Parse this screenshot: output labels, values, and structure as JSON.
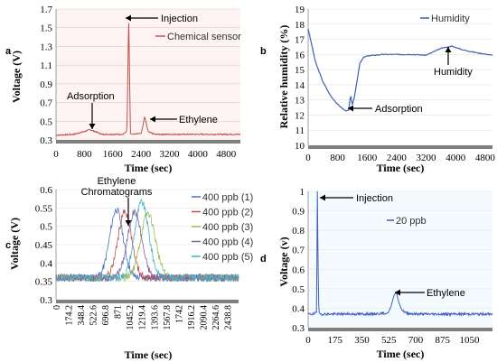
{
  "colors": {
    "sensor": "#c0504d",
    "humidity": "#4060b0",
    "chrom": [
      "#4472c4",
      "#c0504d",
      "#9bbb59",
      "#8064a2",
      "#4bacc6"
    ],
    "ppb20": "#3f5fbf",
    "axis_bar": "#7f7f7f"
  },
  "chart_data": [
    {
      "panel": "a",
      "type": "line",
      "ylabel": "Voltage (V)",
      "xlabel": "Time (sec)",
      "xlim": [
        0,
        5200
      ],
      "ylim": [
        0.3,
        1.7
      ],
      "xticks": [
        "0",
        "800",
        "1600",
        "2400",
        "3200",
        "4000",
        "4800"
      ],
      "yticks": [
        "0.3",
        "0.5",
        "0.7",
        "0.9",
        "1.1",
        "1.3",
        "1.5",
        "1.7"
      ],
      "series": [
        {
          "name": "Chemical sensor",
          "x": [
            0,
            500,
            800,
            950,
            1100,
            1300,
            1600,
            1900,
            2000,
            2050,
            2100,
            2150,
            2200,
            2400,
            2450,
            2500,
            2550,
            2600,
            2700,
            2800,
            3200,
            3600,
            4000,
            4400,
            4800,
            5200
          ],
          "y": [
            0.35,
            0.36,
            0.39,
            0.41,
            0.39,
            0.36,
            0.36,
            0.36,
            0.4,
            1.6,
            0.37,
            0.36,
            0.36,
            0.37,
            0.45,
            0.55,
            0.47,
            0.39,
            0.37,
            0.36,
            0.36,
            0.36,
            0.36,
            0.36,
            0.36,
            0.36
          ]
        }
      ],
      "annotations": [
        "Injection",
        "Adsorption",
        "Ethylene"
      ]
    },
    {
      "panel": "b",
      "type": "line",
      "ylabel": "Relative humidity (%)",
      "xlabel": "Time (sec)",
      "xlim": [
        0,
        5000
      ],
      "ylim": [
        10,
        19
      ],
      "xticks": [
        "0",
        "800",
        "1600",
        "2400",
        "3200",
        "4000",
        "4800"
      ],
      "yticks": [
        "10",
        "11",
        "12",
        "13",
        "14",
        "15",
        "16",
        "17",
        "18",
        "19"
      ],
      "series": [
        {
          "name": "Humidity",
          "x": [
            0,
            100,
            200,
            400,
            600,
            800,
            1000,
            1100,
            1150,
            1200,
            1250,
            1400,
            1500,
            1600,
            2000,
            2400,
            2800,
            3200,
            3600,
            3900,
            4200,
            4600,
            5000
          ],
          "y": [
            17.7,
            16.6,
            15.5,
            14.2,
            13.3,
            12.7,
            12.3,
            12.3,
            13.3,
            12.7,
            13.1,
            15.4,
            15.8,
            15.9,
            16.0,
            16.0,
            16.0,
            15.95,
            16.4,
            16.55,
            16.3,
            16.1,
            15.95
          ]
        }
      ],
      "annotations": [
        "Humidity",
        "Adsorption"
      ]
    },
    {
      "panel": "c",
      "type": "line",
      "ylabel": "Voltage (V)",
      "xlabel": "Time (sec)",
      "ylim": [
        0.3,
        0.6
      ],
      "xlim": [
        0,
        2600
      ],
      "xticks": [
        "0",
        "174.2",
        "348.4",
        "522.6",
        "696.8",
        "871",
        "1045.2",
        "1219.4",
        "1393.6",
        "1567.8",
        "1742",
        "1916.2",
        "2090.4",
        "2264.6",
        "2438.8"
      ],
      "yticks": [
        "0.3",
        "0.35",
        "0.4",
        "0.45",
        "0.5",
        "0.55",
        "0.6"
      ],
      "series": [
        {
          "name": "400 ppb (1)",
          "center": 860,
          "width": 200,
          "peak": 0.545
        },
        {
          "name": "400 ppb (2)",
          "center": 980,
          "width": 200,
          "peak": 0.54
        },
        {
          "name": "400 ppb (3)",
          "center": 1310,
          "width": 220,
          "peak": 0.535
        },
        {
          "name": "400 ppb (4)",
          "center": 1120,
          "width": 210,
          "peak": 0.54
        },
        {
          "name": "400 ppb (5)",
          "center": 1220,
          "width": 210,
          "peak": 0.565
        }
      ],
      "baseline": 0.36,
      "annotation": [
        "Ethylene",
        "Chromatograms"
      ]
    },
    {
      "panel": "d",
      "type": "line",
      "ylabel": "Voltage (v)",
      "xlabel": "Time (sec)",
      "xlim": [
        0,
        1200
      ],
      "ylim": [
        0.3,
        1.0
      ],
      "xticks": [
        "0",
        "175",
        "350",
        "525",
        "700",
        "875",
        "1050"
      ],
      "yticks": [
        "0.3",
        "0.4",
        "0.5",
        "0.6",
        "0.7",
        "0.8",
        "0.9",
        "1"
      ],
      "series": [
        {
          "name": "20 ppb",
          "x": [
            0,
            40,
            55,
            60,
            65,
            70,
            80,
            200,
            400,
            520,
            540,
            560,
            575,
            590,
            610,
            640,
            700,
            800,
            900,
            1000,
            1100,
            1200
          ],
          "y": [
            0.37,
            0.37,
            0.38,
            1.0,
            0.6,
            0.38,
            0.37,
            0.37,
            0.37,
            0.375,
            0.41,
            0.47,
            0.48,
            0.43,
            0.39,
            0.375,
            0.37,
            0.37,
            0.37,
            0.37,
            0.37,
            0.37
          ]
        }
      ],
      "annotations": [
        "Injection",
        "Ethylene"
      ]
    }
  ],
  "panel_letters": [
    "a",
    "b",
    "c",
    "d"
  ]
}
